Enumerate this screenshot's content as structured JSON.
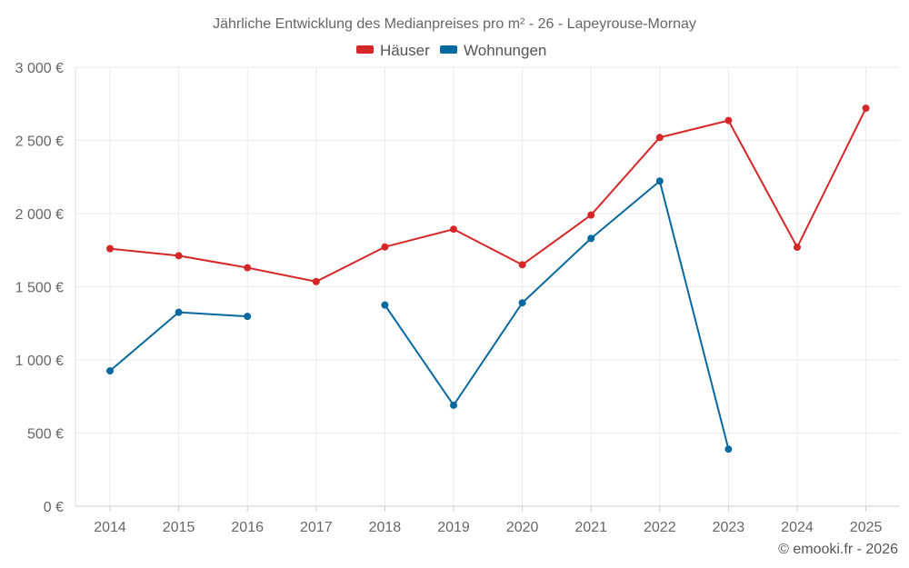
{
  "chart_data": {
    "type": "line",
    "title": "Jährliche Entwicklung des Medianpreises pro m² - 26 - Lapeyrouse-Mornay",
    "categories": [
      "2014",
      "2015",
      "2016",
      "2017",
      "2018",
      "2019",
      "2020",
      "2021",
      "2022",
      "2023",
      "2024",
      "2025"
    ],
    "ylim": [
      0,
      3000
    ],
    "y_ticks": [
      0,
      500,
      1000,
      1500,
      2000,
      2500,
      3000
    ],
    "y_tick_labels": [
      "0 €",
      "500 €",
      "1 000 €",
      "1 500 €",
      "2 000 €",
      "2 500 €",
      "3 000 €"
    ],
    "grid": true,
    "legend_position": "top-center",
    "series": [
      {
        "name": "Häuser",
        "color": "#d62728",
        "values": [
          1760,
          1712,
          1630,
          1535,
          1772,
          1893,
          1650,
          1990,
          2520,
          2636,
          1770,
          2720
        ]
      },
      {
        "name": "Wohnungen",
        "color": "#0868a0",
        "values": [
          925,
          1325,
          1297,
          null,
          1375,
          690,
          1390,
          1830,
          2222,
          390,
          null,
          null
        ]
      }
    ],
    "credit": "© emooki.fr - 2026"
  }
}
